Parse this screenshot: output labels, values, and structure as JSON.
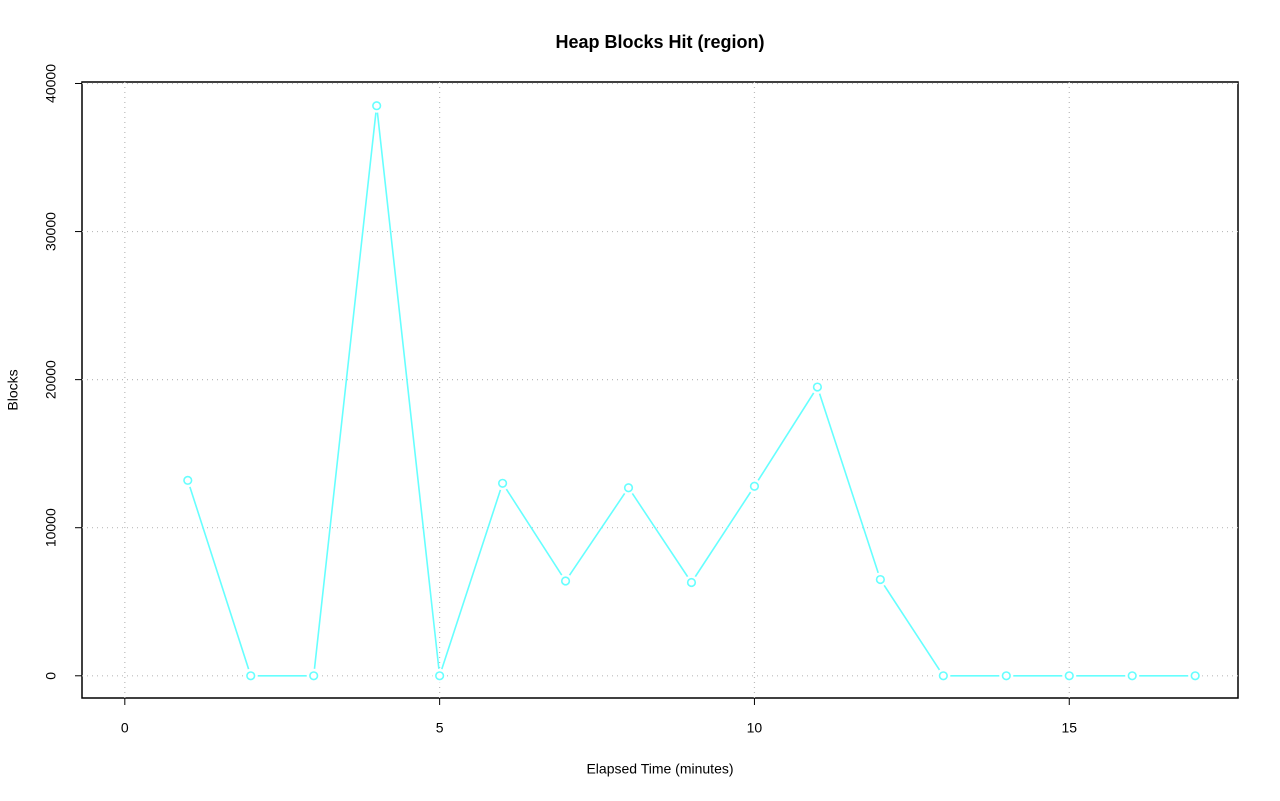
{
  "chart_data": {
    "type": "line",
    "title": "Heap Blocks Hit (region)",
    "x_label": "Elapsed Time (minutes)",
    "y_label": "Blocks",
    "x": [
      1,
      2,
      3,
      4,
      5,
      6,
      7,
      8,
      9,
      10,
      11,
      12,
      13,
      14,
      15,
      16,
      17
    ],
    "series": [
      {
        "name": "Blocks",
        "color": "#66ffff",
        "values": [
          13200,
          0,
          0,
          38500,
          0,
          13000,
          6400,
          12700,
          6300,
          12800,
          19500,
          6500,
          0,
          0,
          0,
          0,
          0
        ]
      }
    ],
    "xlim": [
      -0.68,
      17.68
    ],
    "xticks": [
      0,
      5,
      10,
      15
    ],
    "ylim": [
      -1500,
      40100
    ],
    "yticks": [
      0,
      10000,
      20000,
      30000,
      40000
    ],
    "grid": true
  }
}
